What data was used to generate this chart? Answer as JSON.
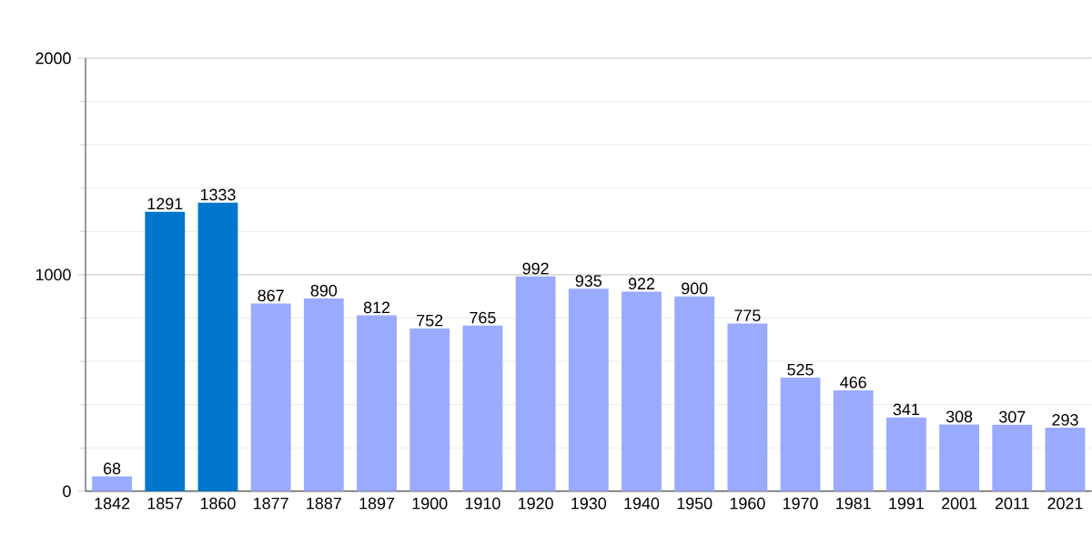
{
  "chart_data": {
    "type": "bar",
    "categories": [
      "1842",
      "1857",
      "1860",
      "1877",
      "1887",
      "1897",
      "1900",
      "1910",
      "1920",
      "1930",
      "1940",
      "1950",
      "1960",
      "1970",
      "1981",
      "1991",
      "2001",
      "2011",
      "2021"
    ],
    "values": [
      68,
      1291,
      1333,
      867,
      890,
      812,
      752,
      765,
      992,
      935,
      922,
      900,
      775,
      525,
      466,
      341,
      308,
      307,
      293
    ],
    "colors": [
      "#99aaff",
      "#0077cc",
      "#0077cc",
      "#99aaff",
      "#99aaff",
      "#99aaff",
      "#99aaff",
      "#99aaff",
      "#99aaff",
      "#99aaff",
      "#99aaff",
      "#99aaff",
      "#99aaff",
      "#99aaff",
      "#99aaff",
      "#99aaff",
      "#99aaff",
      "#99aaff",
      "#99aaff"
    ],
    "ylim": [
      0,
      2000
    ],
    "yticks": [
      0,
      1000,
      2000
    ],
    "grid": "y",
    "data_labels": true
  }
}
